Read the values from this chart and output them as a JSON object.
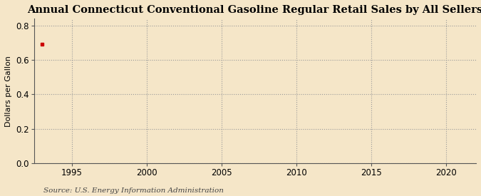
{
  "title": "Annual Connecticut Conventional Gasoline Regular Retail Sales by All Sellers",
  "ylabel": "Dollars per Gallon",
  "source": "Source: U.S. Energy Information Administration",
  "background_color": "#f5e6c8",
  "data_x": [
    1993
  ],
  "data_y": [
    0.692
  ],
  "data_color": "#cc0000",
  "xlim": [
    1992.5,
    2022
  ],
  "ylim": [
    0.0,
    0.84
  ],
  "xticks": [
    1995,
    2000,
    2005,
    2010,
    2015,
    2020
  ],
  "yticks": [
    0.0,
    0.2,
    0.4,
    0.6,
    0.8
  ],
  "grid_color": "#999999",
  "spine_color": "#555555",
  "title_fontsize": 10.5,
  "label_fontsize": 8,
  "tick_fontsize": 8.5,
  "source_fontsize": 7.5
}
